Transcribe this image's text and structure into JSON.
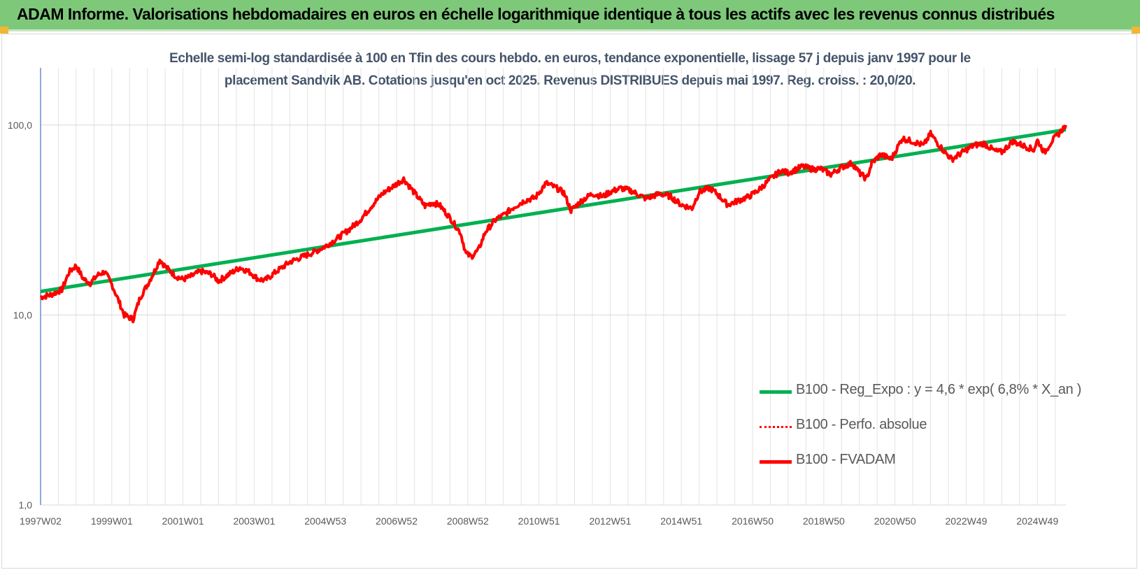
{
  "banner": {
    "title": "ADAM Informe. Valorisations hebdomadaires en euros en échelle logarithmique identique à tous les actifs avec les revenus connus distribués"
  },
  "colors": {
    "banner_bg": "#7ec87a",
    "corner_marker": "#f2b632",
    "title_text": "#44546a",
    "trend_green": "#00b050",
    "series_red": "#ff0000",
    "grid": "#d9d9d9",
    "axis": "#4472c4"
  },
  "chart_data": {
    "type": "line",
    "title_line1": "Echelle semi-log standardisée à 100 en Tfin des cours hebdo. en euros, tendance exponentielle, lissage 57 j depuis janv 1997 pour le",
    "title_line2": "placement Sandvik AB. Cotations jusqu'en oct 2025. Revenus DISTRIBUES depuis mai 1997. Reg. croiss. : 20,0/20.",
    "y_scale": "log",
    "ylim": [
      1,
      200
    ],
    "y_ticks": [
      {
        "value": 1,
        "label": "1,0"
      },
      {
        "value": 10,
        "label": "10,0"
      },
      {
        "value": 100,
        "label": "100,0"
      }
    ],
    "xlim": [
      1997.0,
      2025.8
    ],
    "x_ticks": [
      {
        "value": 1997.0,
        "label": "1997W02"
      },
      {
        "value": 1999.0,
        "label": "1999W01"
      },
      {
        "value": 2001.0,
        "label": "2001W01"
      },
      {
        "value": 2003.0,
        "label": "2003W01"
      },
      {
        "value": 2005.0,
        "label": "2004W53"
      },
      {
        "value": 2007.0,
        "label": "2006W52"
      },
      {
        "value": 2009.0,
        "label": "2008W52"
      },
      {
        "value": 2011.0,
        "label": "2010W51"
      },
      {
        "value": 2013.0,
        "label": "2012W51"
      },
      {
        "value": 2015.0,
        "label": "2014W51"
      },
      {
        "value": 2017.0,
        "label": "2016W50"
      },
      {
        "value": 2019.0,
        "label": "2018W50"
      },
      {
        "value": 2021.0,
        "label": "2020W50"
      },
      {
        "value": 2023.0,
        "label": "2022W49"
      },
      {
        "value": 2025.0,
        "label": "2024W49"
      }
    ],
    "grid": true,
    "legend_position": "bottom-right",
    "series": [
      {
        "name": "B100 - Reg_Expo : y = 4,6 * exp( 6,8% *  X_an )",
        "color": "#00b050",
        "style": "solid",
        "x": [
          1997.0,
          2025.8
        ],
        "y": [
          13.3,
          94.5
        ]
      },
      {
        "name": "B100 - Perfo. absolue",
        "color": "#ff0000",
        "style": "dotted",
        "x": [
          1997.0,
          1997.3,
          1997.6,
          1997.8,
          1998.0,
          1998.2,
          1998.4,
          1998.6,
          1998.8,
          1999.0,
          1999.2,
          1999.35,
          1999.6,
          1999.8,
          2000.0,
          2000.2,
          2000.35,
          2000.5,
          2000.8,
          2001.0,
          2001.2,
          2001.5,
          2001.8,
          2002.0,
          2002.3,
          2002.6,
          2002.9,
          2003.1,
          2003.3,
          2003.6,
          2004.0,
          2004.4,
          2004.7,
          2005.0,
          2005.3,
          2005.7,
          2006.0,
          2006.3,
          2006.6,
          2006.9,
          2007.2,
          2007.5,
          2007.8,
          2008.0,
          2008.2,
          2008.5,
          2008.8,
          2008.95,
          2009.1,
          2009.3,
          2009.5,
          2009.8,
          2010.0,
          2010.3,
          2010.6,
          2010.9,
          2011.2,
          2011.5,
          2011.7,
          2011.9,
          2012.2,
          2012.5,
          2012.8,
          2013.0,
          2013.3,
          2013.6,
          2014.0,
          2014.4,
          2014.7,
          2015.0,
          2015.3,
          2015.5,
          2015.8,
          2016.0,
          2016.3,
          2016.6,
          2016.9,
          2017.2,
          2017.5,
          2017.8,
          2018.0,
          2018.4,
          2018.7,
          2018.9,
          2019.2,
          2019.5,
          2019.8,
          2020.0,
          2020.2,
          2020.35,
          2020.6,
          2020.9,
          2021.0,
          2021.2,
          2021.5,
          2021.8,
          2022.0,
          2022.2,
          2022.4,
          2022.6,
          2022.9,
          2023.2,
          2023.5,
          2023.8,
          2024.0,
          2024.3,
          2024.6,
          2024.9,
          2025.0,
          2025.2,
          2025.4,
          2025.6,
          2025.8
        ],
        "y": [
          12.4,
          12.8,
          13.6,
          16.8,
          18.2,
          15.5,
          14.7,
          16.2,
          16.9,
          14.5,
          11.8,
          10.0,
          9.5,
          12.4,
          14.4,
          17.0,
          19.6,
          18.0,
          16.0,
          15.4,
          15.9,
          17.0,
          16.4,
          15.1,
          16.4,
          17.8,
          16.7,
          15.5,
          15.2,
          16.8,
          19.0,
          20.4,
          21.5,
          23.0,
          25.0,
          28.5,
          32.0,
          37.5,
          43.5,
          47.5,
          52.0,
          44.0,
          37.5,
          39.0,
          38.0,
          32.5,
          27.0,
          21.0,
          20.3,
          22.0,
          27.5,
          32.0,
          33.5,
          37.0,
          40.0,
          41.5,
          49.5,
          46.5,
          44.0,
          35.5,
          40.0,
          43.5,
          42.0,
          44.5,
          46.5,
          45.0,
          41.0,
          43.5,
          42.0,
          38.0,
          36.5,
          44.5,
          46.5,
          43.5,
          38.0,
          40.0,
          42.0,
          46.0,
          52.0,
          57.5,
          56.0,
          60.5,
          58.5,
          59.0,
          55.0,
          60.0,
          63.0,
          56.0,
          52.0,
          63.0,
          70.0,
          66.0,
          72.0,
          85.0,
          82.0,
          78.0,
          90.0,
          80.0,
          72.0,
          66.0,
          72.0,
          78.0,
          80.0,
          73.0,
          72.0,
          82.0,
          78.0,
          74.0,
          83.0,
          71.5,
          82.0,
          90.0,
          100.0
        ]
      },
      {
        "name": "B100 - FVADAM",
        "color": "#ff0000",
        "style": "solid"
      }
    ]
  }
}
